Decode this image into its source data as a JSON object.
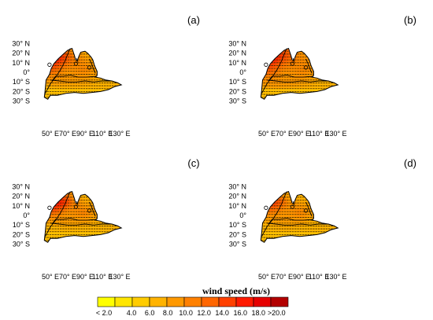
{
  "panels": [
    {
      "label": "(a)",
      "variant": "a"
    },
    {
      "label": "(b)",
      "variant": "b"
    },
    {
      "label": "(c)",
      "variant": "c"
    },
    {
      "label": "(d)",
      "variant": "d"
    }
  ],
  "lat_ticks": [
    "30° N",
    "20° N",
    "10° N",
    "0°",
    "10° S",
    "20° S",
    "30° S"
  ],
  "lon_ticks": [
    "50° E",
    "70° E",
    "90° E",
    "110° E",
    "130° E"
  ],
  "colorbar": {
    "title": "wind speed (m/s)",
    "labels": [
      "< 2.0",
      "4.0",
      "6.0",
      "8.0",
      "10.0",
      "12.0",
      "14.0",
      "16.0",
      "18.0",
      ">20.0"
    ],
    "colors": [
      "#ffff00",
      "#ffe600",
      "#ffcc00",
      "#ffb300",
      "#ff9900",
      "#ff8000",
      "#ff6600",
      "#ff4000",
      "#ff1a00",
      "#e60000",
      "#b30000"
    ]
  }
}
